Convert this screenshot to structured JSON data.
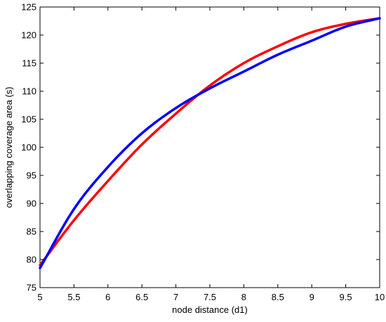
{
  "chart_data": {
    "type": "line",
    "title": "",
    "xlabel": "node distance (d1)",
    "ylabel": "overlapping coverage area (s)",
    "xlim": [
      5,
      10
    ],
    "ylim": [
      75,
      125
    ],
    "xticks": [
      5,
      5.5,
      6,
      6.5,
      7,
      7.5,
      8,
      8.5,
      9,
      9.5,
      10
    ],
    "yticks": [
      75,
      80,
      85,
      90,
      95,
      100,
      105,
      110,
      115,
      120,
      125
    ],
    "xtick_labels": [
      "5",
      "5.5",
      "6",
      "6.5",
      "7",
      "7.5",
      "8",
      "8.5",
      "9",
      "9.5",
      "10"
    ],
    "ytick_labels": [
      "75",
      "80",
      "85",
      "90",
      "95",
      "100",
      "105",
      "110",
      "115",
      "120",
      "125"
    ],
    "grid": false,
    "legend": false,
    "series": [
      {
        "color": "#ff0000",
        "x": [
          5,
          5.5,
          6,
          6.5,
          7,
          7.5,
          8,
          8.5,
          9,
          9.5,
          10
        ],
        "y": [
          79,
          87,
          94,
          100.5,
          106,
          111,
          115,
          118,
          120.5,
          122,
          123
        ]
      },
      {
        "color": "#0000ff",
        "x": [
          5,
          5.5,
          6,
          6.5,
          7,
          7.5,
          8,
          8.5,
          9,
          9.5,
          10
        ],
        "y": [
          78.5,
          89,
          96.5,
          102.5,
          107,
          110.5,
          113.5,
          116.5,
          119,
          121.5,
          123
        ]
      }
    ]
  }
}
